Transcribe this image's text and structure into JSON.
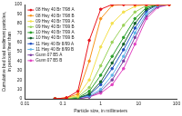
{
  "chart_data": {
    "type": "line",
    "x_label": "Particle size, in millimeters",
    "y_label": [
      "Cumulative bed load sediment particles,",
      "in percent finer than"
    ],
    "x": [
      0.0625,
      0.125,
      0.25,
      0.5,
      1,
      2,
      4,
      8,
      16,
      32,
      64
    ],
    "series": [
      {
        "name": "08 Hwy 40 Br 7/98 A",
        "color": "#e8141c",
        "values": [
          0,
          1,
          8,
          62,
          95,
          100,
          100,
          100,
          100,
          100,
          100
        ]
      },
      {
        "name": "08 Hwy 40 Br 7/98 B",
        "color": "#f7941d",
        "values": [
          0,
          1,
          5,
          40,
          85,
          99,
          100,
          100,
          100,
          100,
          100
        ]
      },
      {
        "name": "09 Hwy 40 Br 7/99 A",
        "color": "#f4e04d",
        "values": [
          0,
          1,
          3,
          20,
          55,
          80,
          92,
          98,
          100,
          100,
          100
        ]
      },
      {
        "name": "09 Hwy 40 Br 7/99 B",
        "color": "#9bd25a",
        "values": [
          0,
          0,
          2,
          12,
          35,
          60,
          78,
          92,
          99,
          100,
          100
        ]
      },
      {
        "name": "10 Hwy 40 Br 7/99 A",
        "color": "#2ca02c",
        "values": [
          0,
          0,
          1,
          8,
          25,
          45,
          65,
          85,
          97,
          100,
          100
        ]
      },
      {
        "name": "10 Hwy 40 Br 7/99 B",
        "color": "#11602a",
        "values": [
          0,
          0,
          1,
          5,
          18,
          38,
          58,
          80,
          95,
          100,
          100
        ]
      },
      {
        "name": "11 Hwy 40 Br 8/99 A",
        "color": "#1f4fbf",
        "values": [
          0,
          0,
          1,
          4,
          15,
          32,
          52,
          75,
          93,
          100,
          100
        ]
      },
      {
        "name": "11 Hwy 40 Br 8/99 B",
        "color": "#5fb4e8",
        "values": [
          0,
          0,
          1,
          3,
          10,
          25,
          45,
          70,
          90,
          99,
          100
        ]
      },
      {
        "name": "Gunn 07 B5 A",
        "color": "#7b3fa0",
        "values": [
          0,
          0,
          0,
          2,
          8,
          20,
          40,
          65,
          88,
          98,
          100
        ]
      },
      {
        "name": "Gunn 07 B5 B",
        "color": "#e040c0",
        "values": [
          0,
          0,
          0,
          2,
          6,
          15,
          32,
          58,
          85,
          97,
          100
        ]
      }
    ],
    "log": "x",
    "xlim": [
      0.01,
      100
    ],
    "xticks": [
      0.01,
      0.1,
      1,
      10,
      100
    ],
    "ylim": [
      0,
      100
    ],
    "yticks": [
      0,
      10,
      20,
      30,
      40,
      50,
      60,
      70,
      80,
      90,
      100
    ],
    "grid": false,
    "legend": "upper left",
    "marker": "circle",
    "line_style": "solid"
  }
}
